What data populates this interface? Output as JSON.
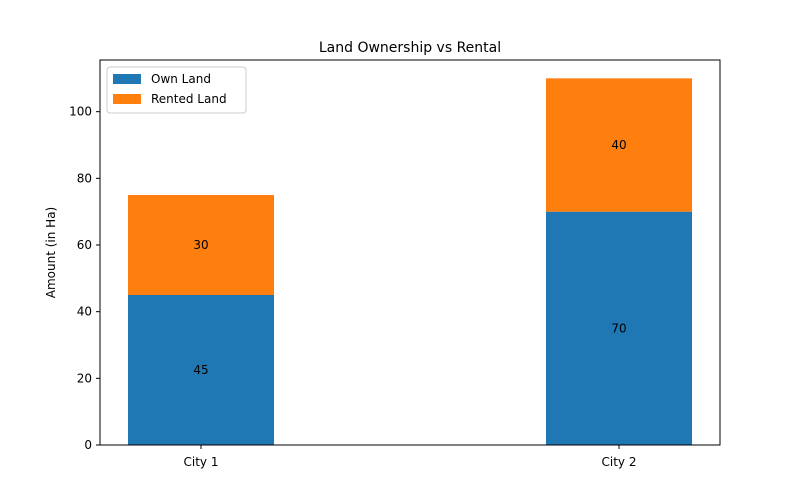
{
  "chart_data": {
    "type": "bar",
    "stacked": true,
    "title": "Land Ownership vs Rental",
    "xlabel": "",
    "ylabel": "Amount (in Ha)",
    "categories": [
      "City 1",
      "City 2"
    ],
    "series": [
      {
        "name": "Own Land",
        "values": [
          45,
          70
        ],
        "color": "#1f77b4"
      },
      {
        "name": "Rented Land",
        "values": [
          30,
          40
        ],
        "color": "#ff7f0e"
      }
    ],
    "ylim": [
      0,
      115.5
    ],
    "yticks": [
      0,
      20,
      40,
      60,
      80,
      100
    ],
    "grid": false,
    "legend_position": "top-left"
  }
}
